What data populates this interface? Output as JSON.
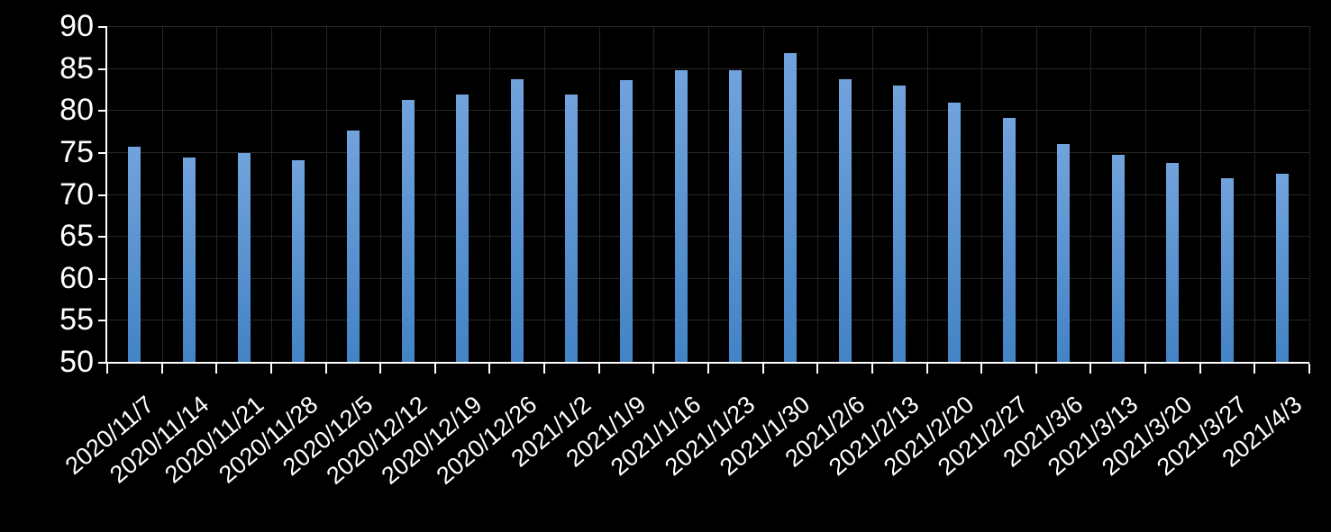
{
  "chart_data": {
    "type": "bar",
    "title": "",
    "xlabel": "",
    "ylabel": "",
    "categories": [
      "2020/11/7",
      "2020/11/14",
      "2020/11/21",
      "2020/11/28",
      "2020/12/5",
      "2020/12/12",
      "2020/12/19",
      "2020/12/26",
      "2021/1/2",
      "2021/1/9",
      "2021/1/16",
      "2021/1/23",
      "2021/1/30",
      "2021/2/6",
      "2021/2/13",
      "2021/2/20",
      "2021/2/27",
      "2021/3/6",
      "2021/3/13",
      "2021/3/20",
      "2021/3/27",
      "2021/4/3"
    ],
    "values": [
      75.6,
      74.3,
      74.9,
      74.0,
      77.6,
      81.2,
      81.9,
      83.7,
      81.9,
      83.6,
      84.7,
      84.7,
      86.8,
      83.7,
      82.9,
      80.9,
      79.1,
      75.9,
      74.7,
      73.7,
      71.9,
      72.4
    ],
    "ylim": [
      50,
      90
    ],
    "ytick_interval": 5,
    "ytick_labels": [
      "90",
      "85",
      "80",
      "75",
      "70",
      "65",
      "60",
      "55",
      "50"
    ],
    "grid": true,
    "legend": false,
    "colors": {
      "background": "#000000",
      "gridline": "#262626",
      "axis": "#ffffff",
      "text": "#ffffff",
      "bar_gradient_top": "#71a3dc",
      "bar_gradient_bottom": "#4383c5"
    }
  }
}
